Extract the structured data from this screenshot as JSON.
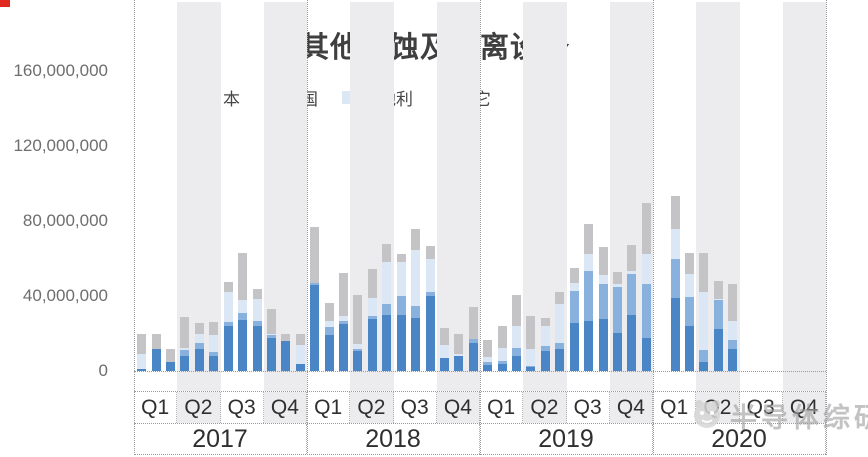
{
  "title": "其他刻蚀及剥离设备",
  "watermark": {
    "text": "半导体综研",
    "icon": "mascot-face"
  },
  "legend": [
    {
      "label": "日本",
      "color": "#4a86c5"
    },
    {
      "label": "韩国",
      "color": "#88b1de"
    },
    {
      "label": "奥地利",
      "color": "#dbe7f5"
    },
    {
      "label": "其它",
      "color": "#c4c4c6"
    }
  ],
  "y_axis": {
    "tick_labels": [
      "160,000,000",
      "120,000,000",
      "80,000,000",
      "40,000,000",
      "0"
    ],
    "tick_values_millions": [
      160,
      120,
      80,
      40,
      0
    ]
  },
  "x_axis": {
    "quarter_labels": [
      "Q1",
      "Q2",
      "Q3",
      "Q4"
    ],
    "year_labels": [
      "2017",
      "2018",
      "2019",
      "2020"
    ],
    "shaded_quarters": [
      "Q2",
      "Q4"
    ]
  },
  "chart_data": {
    "type": "bar",
    "stacked": true,
    "bars_per_quarter": 3,
    "title": "其他刻蚀及剥离设备",
    "ylabel": "",
    "xlabel": "",
    "ylim": [
      0,
      160000000
    ],
    "y_ticks": [
      0,
      40000000,
      80000000,
      120000000,
      160000000
    ],
    "grid": "vertical-dotted-year-separators",
    "legend_position": "top",
    "value_unit": 1000000,
    "years": [
      "2017",
      "2018",
      "2019",
      "2020"
    ],
    "note": "48 monthly slots (Jan 2017 - Dec 2020); null = no bar shown; values are millions, estimated from pixel heights",
    "series": [
      {
        "name": "日本",
        "color": "#4a86c5",
        "values_millions": [
          1,
          12,
          5,
          8,
          11.5,
          8,
          24,
          27,
          24,
          17.5,
          16,
          4,
          46,
          19,
          25,
          10.5,
          28,
          30,
          30,
          28.5,
          40,
          7,
          8,
          15,
          3,
          3.5,
          8,
          2,
          10.5,
          11.5,
          25.5,
          26.5,
          27.5,
          20.5,
          30,
          17.5,
          null,
          39,
          24,
          5,
          22.5,
          12,
          null,
          null,
          null,
          null,
          null,
          null
        ]
      },
      {
        "name": "韩国",
        "color": "#88b1de",
        "values_millions": [
          0,
          0,
          0,
          3,
          3.5,
          2,
          2,
          4,
          2.5,
          2,
          0,
          0,
          1,
          4.5,
          1.5,
          1.5,
          1.5,
          5.5,
          10,
          6,
          2,
          0,
          0,
          2,
          2,
          2,
          4.5,
          0.5,
          3,
          3.5,
          17,
          27,
          19,
          24.5,
          21.5,
          29,
          null,
          21,
          15.5,
          6,
          15.5,
          4.5,
          null,
          null,
          null,
          null,
          null,
          null
        ]
      },
      {
        "name": "奥地利",
        "color": "#dbe7f5",
        "values_millions": [
          8,
          0,
          0,
          1.5,
          4.5,
          9,
          16,
          7,
          12,
          0.5,
          0,
          10,
          0,
          3,
          3,
          2.5,
          9.5,
          22.5,
          18,
          30,
          18,
          7,
          1,
          0,
          2.5,
          7,
          11.5,
          9.5,
          10.5,
          20.5,
          4.5,
          9,
          4.5,
          1.5,
          2,
          16,
          null,
          16,
          12.5,
          31,
          0.5,
          10,
          null,
          null,
          null,
          null,
          null,
          null
        ]
      },
      {
        "name": "其它",
        "color": "#c4c4c6",
        "values_millions": [
          11,
          8,
          7,
          16.5,
          6,
          7,
          5.5,
          25,
          5,
          13,
          4,
          5.5,
          30,
          10,
          23,
          26,
          15.5,
          9.5,
          4.5,
          11,
          6.5,
          9,
          10.5,
          17,
          9,
          11.5,
          16.5,
          17.5,
          4.5,
          6.5,
          8,
          16,
          15,
          6.5,
          13.5,
          27,
          null,
          17.5,
          11,
          21,
          9.5,
          20,
          null,
          null,
          null,
          null,
          null,
          null
        ]
      }
    ]
  }
}
